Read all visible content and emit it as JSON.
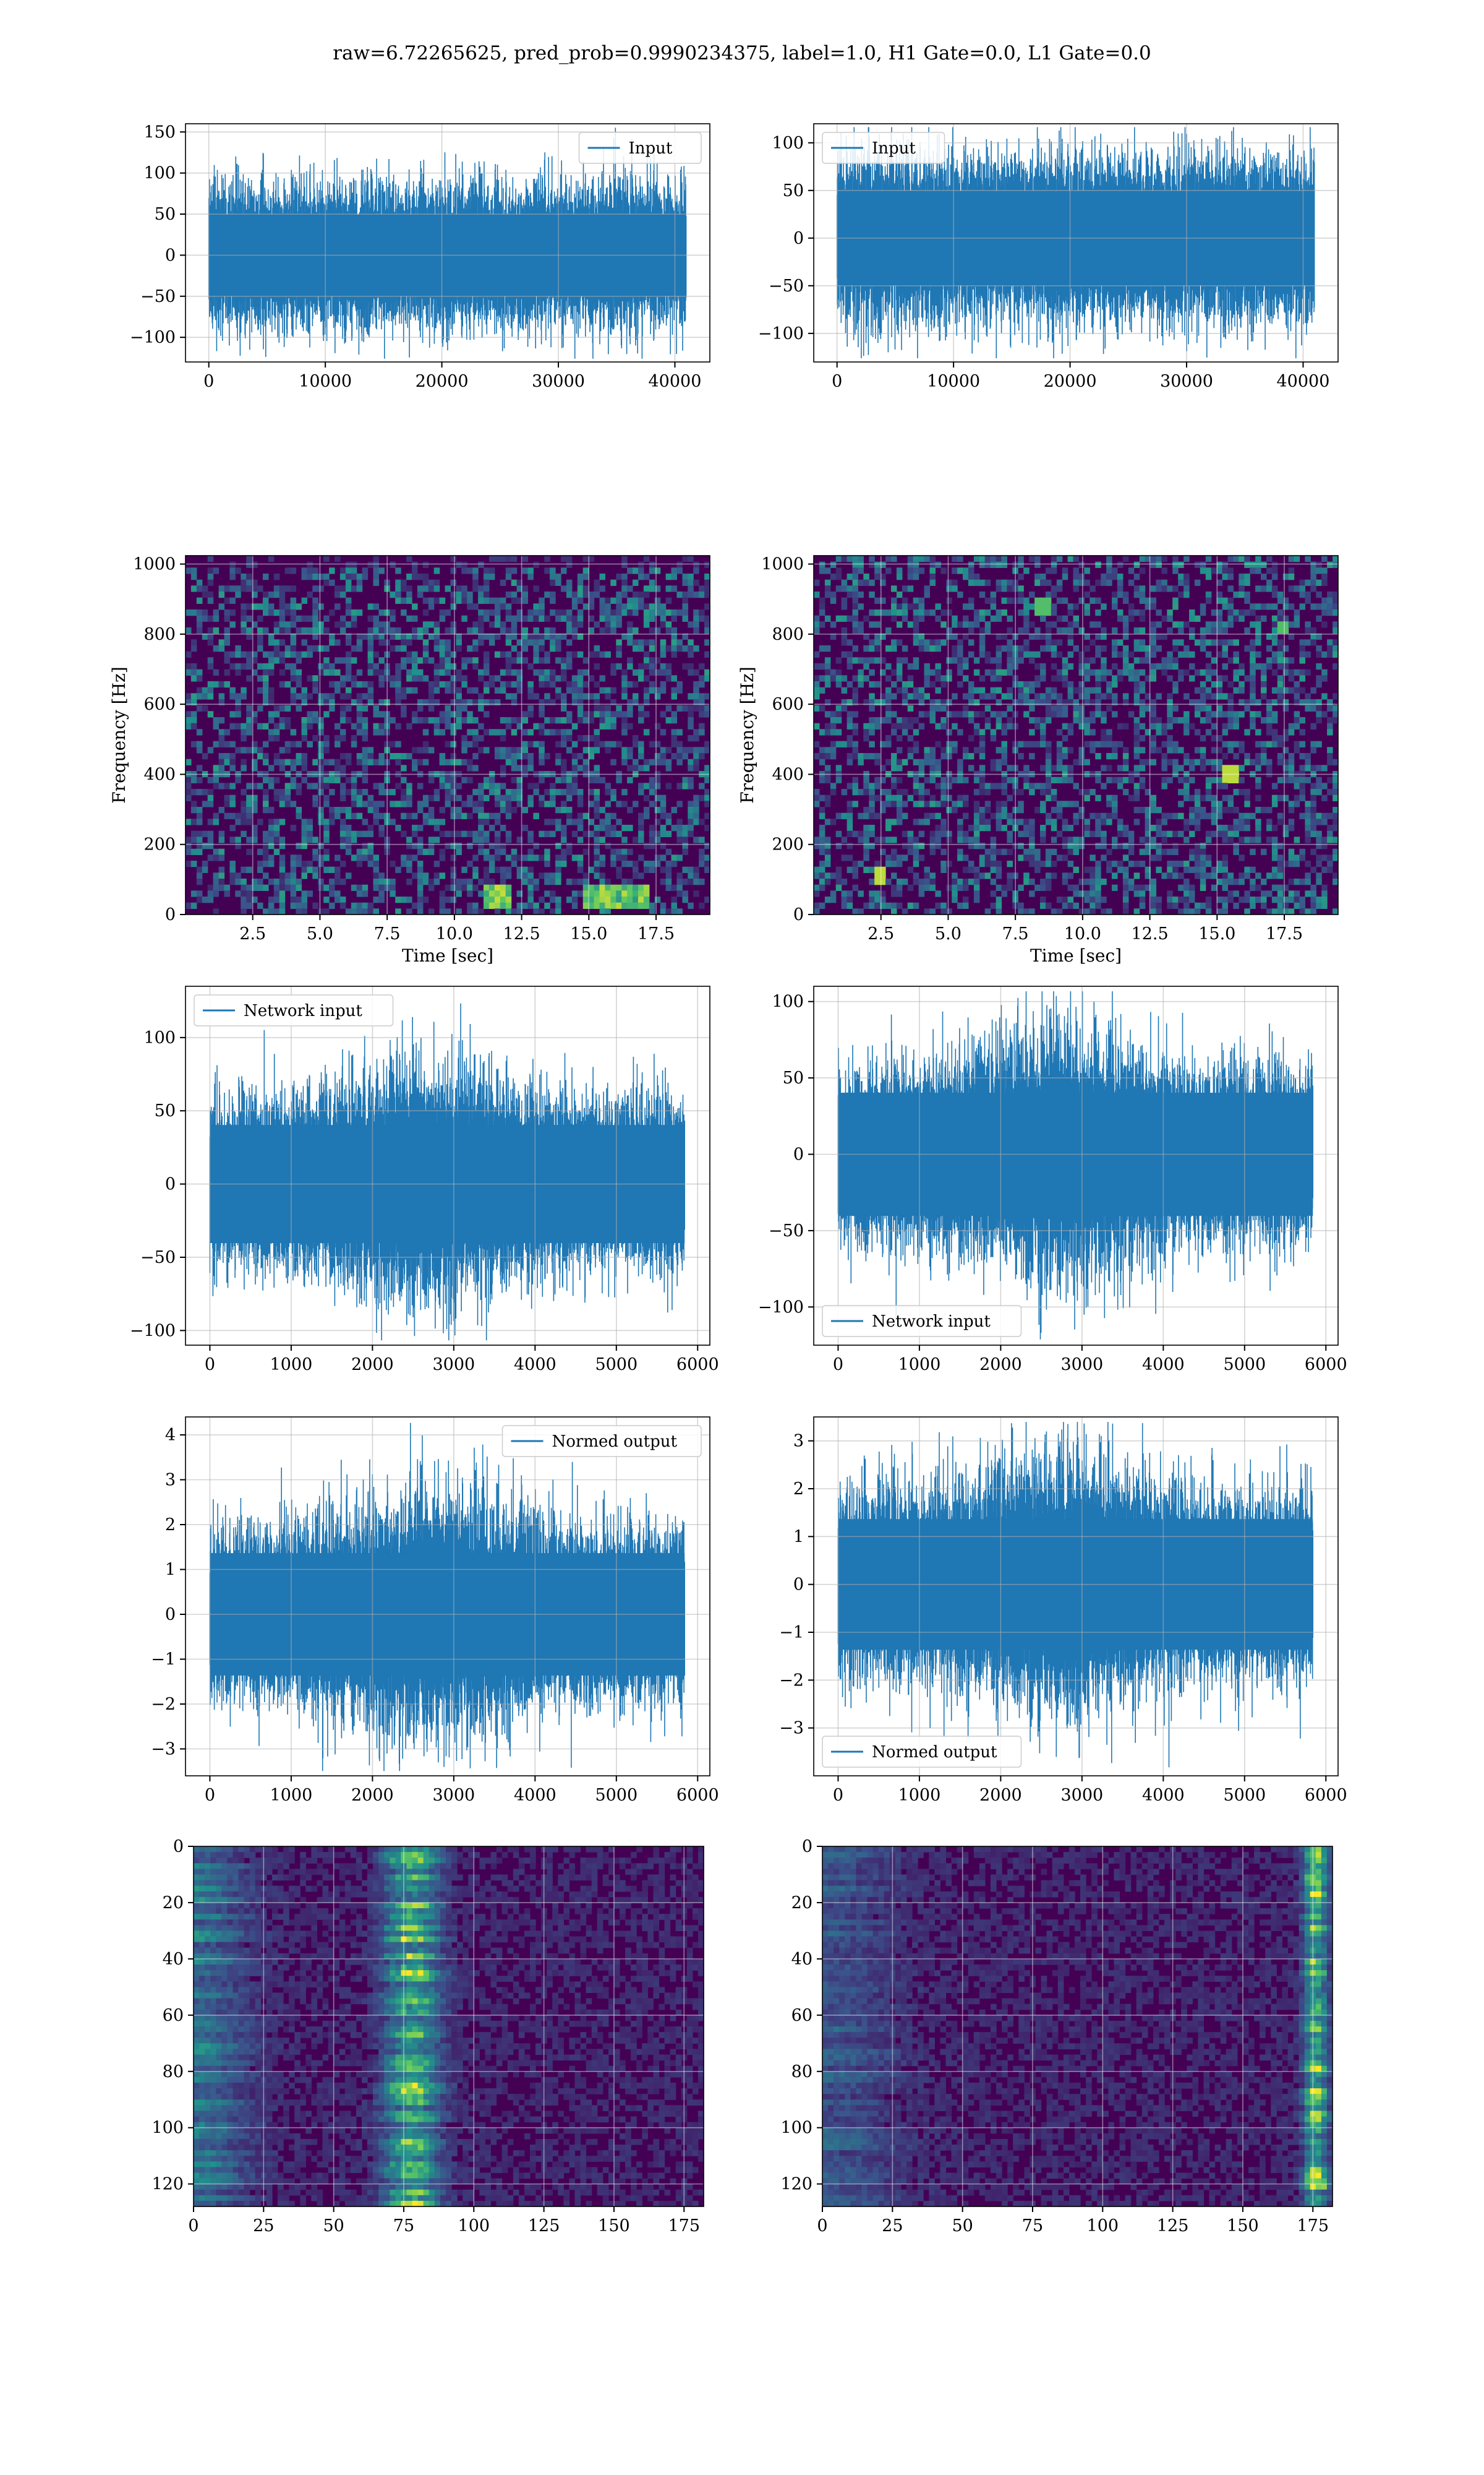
{
  "figure": {
    "title": "raw=6.72265625, pred_prob=0.9990234375, label=1.0, H1 Gate=0.0, L1 Gate=0.0"
  },
  "colors": {
    "line": "#1f77b4",
    "grid": "#b0b0b0",
    "viridis_dark": "#440154",
    "viridis_mid": "#21918c",
    "viridis_bright": "#fde725"
  },
  "chart_data": [
    {
      "id": "p1",
      "row": 1,
      "col": 1,
      "type": "line",
      "series": [
        {
          "name": "Input",
          "amplitude": 80
        }
      ],
      "legend": "upper right",
      "xlim": [
        -2000,
        43000
      ],
      "ylim": [
        -130,
        160
      ],
      "xticks": [
        0,
        10000,
        20000,
        30000,
        40000
      ],
      "yticks": [
        -100,
        -50,
        0,
        50,
        100,
        150
      ],
      "x_range": [
        0,
        40960
      ],
      "grid": true,
      "xlabel": "",
      "ylabel": ""
    },
    {
      "id": "p2",
      "row": 1,
      "col": 2,
      "type": "line",
      "series": [
        {
          "name": "Input",
          "amplitude": 80
        }
      ],
      "legend": "upper left",
      "xlim": [
        -2000,
        43000
      ],
      "ylim": [
        -130,
        120
      ],
      "xticks": [
        0,
        10000,
        20000,
        30000,
        40000
      ],
      "yticks": [
        -100,
        -50,
        0,
        50,
        100
      ],
      "x_range": [
        0,
        40960
      ],
      "grid": true,
      "xlabel": "",
      "ylabel": ""
    },
    {
      "id": "p3",
      "row": 2,
      "col": 1,
      "type": "heatmap",
      "xlim": [
        0,
        19.5
      ],
      "ylim": [
        0,
        1024
      ],
      "xticks": [
        2.5,
        5.0,
        7.5,
        10.0,
        12.5,
        15.0,
        17.5
      ],
      "xticklabels": [
        "2.5",
        "5.0",
        "7.5",
        "10.0",
        "12.5",
        "15.0",
        "17.5"
      ],
      "yticks": [
        0,
        200,
        400,
        600,
        800,
        1000
      ],
      "xlabel": "Time [sec]",
      "ylabel": "Frequency [Hz]",
      "grid": true,
      "features": [
        {
          "kind": "band",
          "y": 505,
          "strength": 0.3
        },
        {
          "kind": "streak",
          "x": [
            11.0,
            12.2
          ],
          "y": 50,
          "strength": 0.95
        },
        {
          "kind": "streak",
          "x": [
            14.8,
            17.2
          ],
          "y": 50,
          "strength": 0.9
        },
        {
          "kind": "band",
          "y": 1010,
          "strength": 0.15
        }
      ]
    },
    {
      "id": "p4",
      "row": 2,
      "col": 2,
      "type": "heatmap",
      "xlim": [
        0,
        19.5
      ],
      "ylim": [
        0,
        1024
      ],
      "xticks": [
        2.5,
        5.0,
        7.5,
        10.0,
        12.5,
        15.0,
        17.5
      ],
      "xticklabels": [
        "2.5",
        "5.0",
        "7.5",
        "10.0",
        "12.5",
        "15.0",
        "17.5"
      ],
      "yticks": [
        0,
        200,
        400,
        600,
        800,
        1000
      ],
      "xlabel": "Time [sec]",
      "ylabel": "Frequency [Hz]",
      "grid": true,
      "features": [
        {
          "kind": "band",
          "y": 505,
          "strength": 0.25
        },
        {
          "kind": "spot",
          "x": 2.5,
          "y": 110,
          "strength": 0.9
        },
        {
          "kind": "spot",
          "x": 15.5,
          "y": 400,
          "strength": 0.9
        },
        {
          "kind": "spot",
          "x": 8.5,
          "y": 880,
          "strength": 0.7
        },
        {
          "kind": "spot",
          "x": 17.5,
          "y": 820,
          "strength": 0.7
        }
      ]
    },
    {
      "id": "p5",
      "row": 3,
      "col": 1,
      "type": "line",
      "series": [
        {
          "name": "Network input",
          "amplitude": 65
        }
      ],
      "legend": "upper left",
      "xlim": [
        -300,
        6150
      ],
      "ylim": [
        -110,
        135
      ],
      "xticks": [
        0,
        1000,
        2000,
        3000,
        4000,
        5000,
        6000
      ],
      "yticks": [
        -100,
        -50,
        0,
        50,
        100
      ],
      "x_range": [
        0,
        5840
      ],
      "grid": true,
      "xlabel": "",
      "ylabel": ""
    },
    {
      "id": "p6",
      "row": 3,
      "col": 2,
      "type": "line",
      "series": [
        {
          "name": "Network input",
          "amplitude": 65
        }
      ],
      "legend": "lower left",
      "xlim": [
        -300,
        6150
      ],
      "ylim": [
        -125,
        110
      ],
      "xticks": [
        0,
        1000,
        2000,
        3000,
        4000,
        5000,
        6000
      ],
      "yticks": [
        -100,
        -50,
        0,
        50,
        100
      ],
      "x_range": [
        0,
        5840
      ],
      "grid": true,
      "xlabel": "",
      "ylabel": ""
    },
    {
      "id": "p7",
      "row": 4,
      "col": 1,
      "type": "line",
      "series": [
        {
          "name": "Normed output",
          "amplitude": 2.2
        }
      ],
      "legend": "upper right",
      "xlim": [
        -300,
        6150
      ],
      "ylim": [
        -3.6,
        4.4
      ],
      "xticks": [
        0,
        1000,
        2000,
        3000,
        4000,
        5000,
        6000
      ],
      "yticks": [
        -3,
        -2,
        -1,
        0,
        1,
        2,
        3,
        4
      ],
      "x_range": [
        0,
        5840
      ],
      "grid": true,
      "xlabel": "",
      "ylabel": ""
    },
    {
      "id": "p8",
      "row": 4,
      "col": 2,
      "type": "line",
      "series": [
        {
          "name": "Normed output",
          "amplitude": 2.2
        }
      ],
      "legend": "lower left",
      "xlim": [
        -300,
        6150
      ],
      "ylim": [
        -4.0,
        3.5
      ],
      "xticks": [
        0,
        1000,
        2000,
        3000,
        4000,
        5000,
        6000
      ],
      "yticks": [
        -3,
        -2,
        -1,
        0,
        1,
        2,
        3
      ],
      "x_range": [
        0,
        5840
      ],
      "grid": true,
      "xlabel": "",
      "ylabel": ""
    },
    {
      "id": "p9",
      "row": 5,
      "col": 1,
      "type": "heatmap",
      "xlim": [
        0,
        182
      ],
      "ylim": [
        128,
        0
      ],
      "xticks": [
        0,
        25,
        50,
        75,
        100,
        125,
        150,
        175
      ],
      "yticks": [
        0,
        20,
        40,
        60,
        80,
        100,
        120
      ],
      "xlabel": "",
      "ylabel": "",
      "grid": true,
      "features": [
        {
          "kind": "column",
          "x": 78,
          "width": 14,
          "strength": 0.75
        },
        {
          "kind": "leftedge",
          "x": 0,
          "width": 18,
          "strength": 0.45
        }
      ]
    },
    {
      "id": "p10",
      "row": 5,
      "col": 2,
      "type": "heatmap",
      "xlim": [
        0,
        182
      ],
      "ylim": [
        128,
        0
      ],
      "xticks": [
        0,
        25,
        50,
        75,
        100,
        125,
        150,
        175
      ],
      "yticks": [
        0,
        20,
        40,
        60,
        80,
        100,
        120
      ],
      "xlabel": "",
      "ylabel": "",
      "grid": true,
      "features": [
        {
          "kind": "column",
          "x": 176,
          "width": 6,
          "strength": 0.95
        },
        {
          "kind": "leftedge",
          "x": 0,
          "width": 25,
          "strength": 0.3
        }
      ]
    }
  ]
}
